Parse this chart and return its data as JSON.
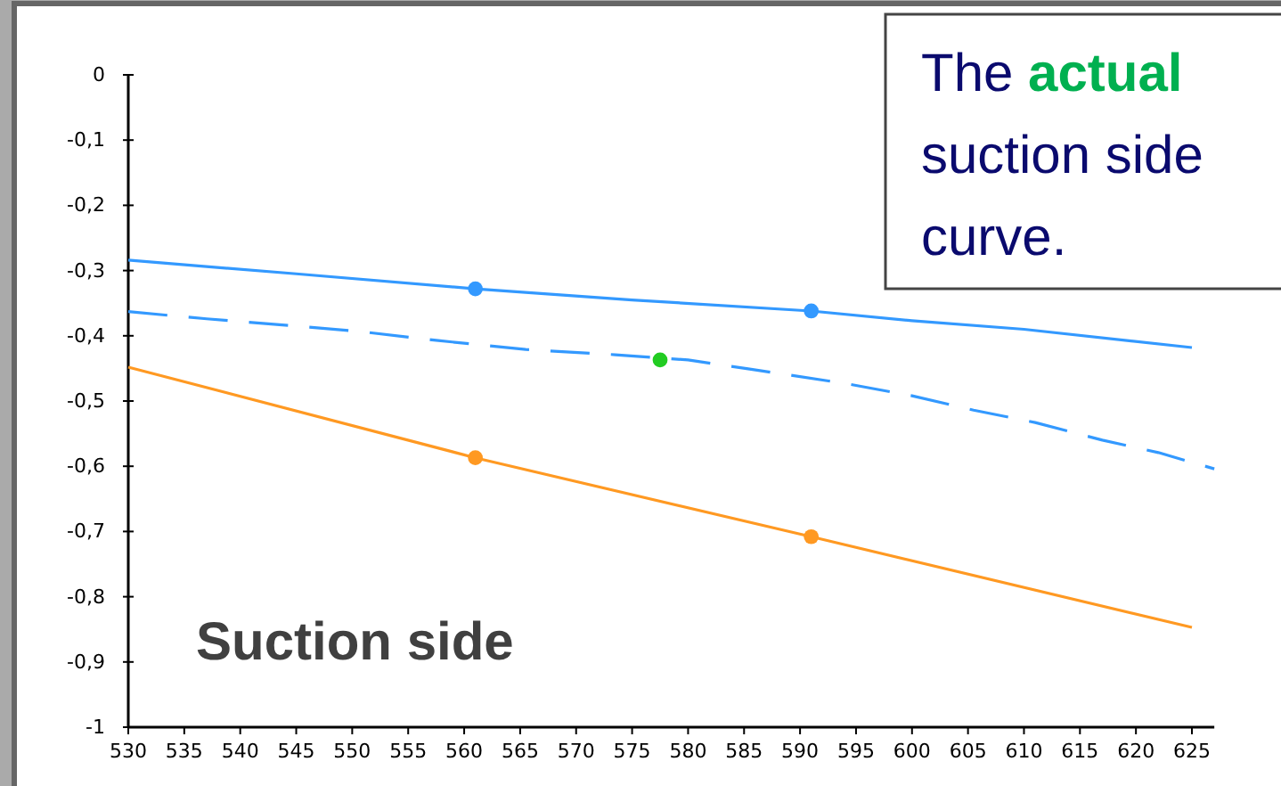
{
  "chart_data": {
    "type": "line",
    "xlim": [
      530,
      627
    ],
    "ylim": [
      -1,
      0
    ],
    "xticks": [
      530,
      535,
      540,
      545,
      550,
      555,
      560,
      565,
      570,
      575,
      580,
      585,
      590,
      595,
      600,
      605,
      610,
      615,
      620,
      625
    ],
    "yticks": [
      {
        "value": 0,
        "label": "0"
      },
      {
        "value": -0.1,
        "label": "-0,1"
      },
      {
        "value": -0.2,
        "label": "-0,2"
      },
      {
        "value": -0.3,
        "label": "-0,3"
      },
      {
        "value": -0.4,
        "label": "-0,4"
      },
      {
        "value": -0.5,
        "label": "-0,5"
      },
      {
        "value": -0.6,
        "label": "-0,6"
      },
      {
        "value": -0.7,
        "label": "-0,7"
      },
      {
        "value": -0.8,
        "label": "-0,8"
      },
      {
        "value": -0.9,
        "label": "-0,9"
      },
      {
        "value": -1,
        "label": "-1"
      }
    ],
    "grid": false,
    "series": [
      {
        "color": "#3399ff",
        "line_style": "solid",
        "marker": "none",
        "x": [
          530,
          545,
          561,
          575,
          591,
          600,
          610,
          625
        ],
        "values": [
          -0.284,
          -0.305,
          -0.328,
          -0.345,
          -0.362,
          -0.377,
          -0.39,
          -0.418
        ]
      },
      {
        "color": "#3399ff",
        "line_style": "dashed",
        "marker": "none",
        "x": [
          530,
          537,
          543.5,
          550.5,
          557.5,
          565.5,
          573.5,
          580,
          585.5,
          594,
          600,
          605.5,
          611,
          617,
          622,
          627
        ],
        "values": [
          -0.363,
          -0.374,
          -0.383,
          -0.393,
          -0.407,
          -0.421,
          -0.429,
          -0.437,
          -0.451,
          -0.473,
          -0.492,
          -0.514,
          -0.533,
          -0.56,
          -0.579,
          -0.604
        ]
      },
      {
        "color": "#ff9922",
        "line_style": "solid",
        "marker": "none",
        "x": [
          530,
          561,
          591,
          625
        ],
        "values": [
          -0.448,
          -0.587,
          -0.708,
          -0.847
        ]
      },
      {
        "type": "scatter",
        "color": "#3399ff",
        "marker": "circle",
        "x": [
          561,
          591
        ],
        "values": [
          -0.328,
          -0.362
        ]
      },
      {
        "type": "scatter",
        "color": "#ff9922",
        "marker": "circle",
        "x": [
          561,
          591
        ],
        "values": [
          -0.587,
          -0.708
        ]
      },
      {
        "type": "scatter",
        "color": "#22cc22",
        "marker": "circle",
        "x": [
          577.5
        ],
        "values": [
          -0.437
        ]
      }
    ],
    "annotations": [
      "Suction side",
      "The actual\nsuction side\ncurve."
    ]
  }
}
